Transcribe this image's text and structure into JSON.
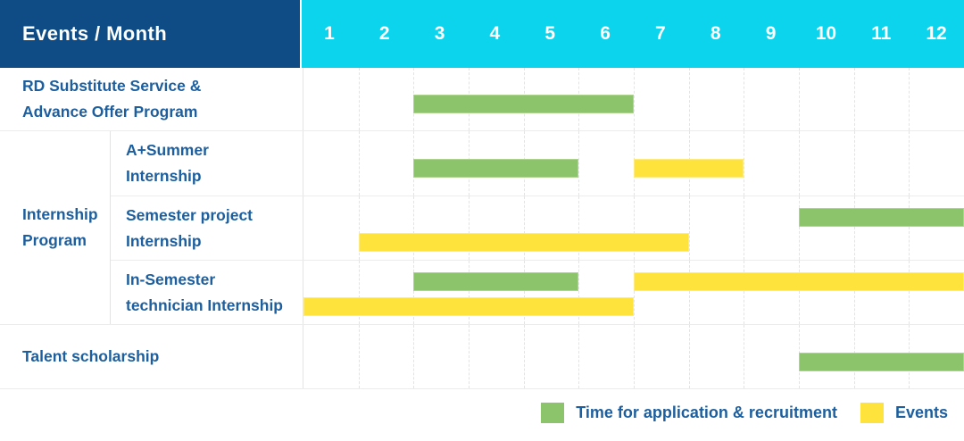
{
  "colors": {
    "header_bg": "#0f4c85",
    "months_bg": "#0cd4ec",
    "application": "#8bc46a",
    "event": "#ffe33d",
    "label_text": "#1d5f9e"
  },
  "legend": [
    {
      "kind": "application",
      "label": "Time for application & recruitment"
    },
    {
      "kind": "event",
      "label": "Events"
    }
  ],
  "chart_data": {
    "type": "bar",
    "variant": "gantt-schedule",
    "title": "Events / Month",
    "xlabel": "Month",
    "x_ticks": [
      "1",
      "2",
      "3",
      "4",
      "5",
      "6",
      "7",
      "8",
      "9",
      "10",
      "11",
      "12"
    ],
    "x_range": [
      1,
      12
    ],
    "grid": "vertical-dashed",
    "legend_position": "bottom-right",
    "groups": [
      {
        "label_lines": [],
        "rows": [
          {
            "label_lines": [
              "RD Substitute Service &",
              "Advance Offer Program"
            ],
            "bars": [
              {
                "kind": "application",
                "start_month": 3,
                "end_month": 6,
                "lane": "center"
              }
            ]
          }
        ]
      },
      {
        "label_lines": [
          "Internship",
          "Program"
        ],
        "rows": [
          {
            "label_lines": [
              "A+Summer",
              "Internship"
            ],
            "bars": [
              {
                "kind": "application",
                "start_month": 3,
                "end_month": 5,
                "lane": "center"
              },
              {
                "kind": "event",
                "start_month": 7,
                "end_month": 8,
                "lane": "center"
              }
            ]
          },
          {
            "label_lines": [
              "Semester project",
              "Internship"
            ],
            "bars": [
              {
                "kind": "application",
                "start_month": 10,
                "end_month": 12,
                "lane": "top"
              },
              {
                "kind": "event",
                "start_month": 2,
                "end_month": 7,
                "lane": "bottom"
              }
            ]
          },
          {
            "label_lines": [
              "In-Semester",
              "technician Internship"
            ],
            "bars": [
              {
                "kind": "application",
                "start_month": 3,
                "end_month": 5,
                "lane": "top"
              },
              {
                "kind": "event",
                "start_month": 7,
                "end_month": 12,
                "lane": "top"
              },
              {
                "kind": "event",
                "start_month": 1,
                "end_month": 6,
                "lane": "bottom"
              }
            ]
          }
        ]
      },
      {
        "label_lines": [],
        "rows": [
          {
            "label_lines": [
              "Talent scholarship"
            ],
            "bars": [
              {
                "kind": "application",
                "start_month": 10,
                "end_month": 12,
                "lane": "center"
              }
            ]
          }
        ]
      }
    ]
  }
}
